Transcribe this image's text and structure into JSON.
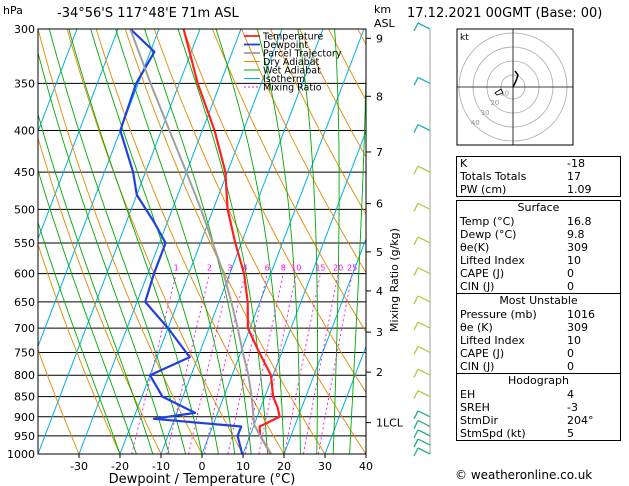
{
  "header": {
    "location": "-34°56'S  117°48'E  71m  ASL",
    "datetime": "17.12.2021  00GMT  (Base: 00)"
  },
  "copyright": "© weatheronline.co.uk",
  "colors": {
    "temperature": "#ff2020",
    "dewpoint": "#2040e0",
    "parcel": "#a0a0a0",
    "dry_adiabat": "#e08a00",
    "wet_adiabat": "#00aa00",
    "isotherm": "#00b0e0",
    "mixing_ratio": "#ff00ff",
    "wind": "#33cc33"
  },
  "chart_data": {
    "type": "line",
    "title": "",
    "xlabel": "Dewpoint / Temperature (°C)",
    "ylabel": "hPa",
    "y2label_km": "km\nASL",
    "mixing_ratio_label": "Mixing Ratio (g/kg)",
    "xlim": [
      -35,
      40
    ],
    "ylim": [
      1000,
      300
    ],
    "x_ticks": [
      -30,
      -20,
      -10,
      0,
      10,
      20,
      30,
      40
    ],
    "pressure_ticks": [
      300,
      350,
      400,
      450,
      500,
      550,
      600,
      650,
      700,
      750,
      800,
      850,
      900,
      950,
      1000
    ],
    "km_ticks": [
      {
        "p": 308,
        "label": "9"
      },
      {
        "p": 363,
        "label": "8"
      },
      {
        "p": 425,
        "label": "7"
      },
      {
        "p": 492,
        "label": "6"
      },
      {
        "p": 564,
        "label": "5"
      },
      {
        "p": 630,
        "label": "4"
      },
      {
        "p": 708,
        "label": "3"
      },
      {
        "p": 793,
        "label": "2"
      },
      {
        "p": 915,
        "label": "1LCL"
      }
    ],
    "mixing_ratio_values": [
      "1",
      "2",
      "3",
      "4",
      "6",
      "8",
      "10",
      "15",
      "20",
      "25"
    ],
    "legend": {
      "position": "top-left",
      "entries": [
        "Temperature",
        "Dewpoint",
        "Parcel Trajectory",
        "Dry Adiabat",
        "Wet Adiabat",
        "Isotherm",
        "Mixing Ratio"
      ]
    },
    "series": [
      {
        "name": "Temperature",
        "points": [
          [
            1000,
            16.8
          ],
          [
            950,
            12.5
          ],
          [
            925,
            11.5
          ],
          [
            900,
            15.5
          ],
          [
            875,
            14.0
          ],
          [
            850,
            12.0
          ],
          [
            800,
            9.5
          ],
          [
            750,
            4.5
          ],
          [
            700,
            -0.5
          ],
          [
            650,
            -3.0
          ],
          [
            600,
            -6.5
          ],
          [
            550,
            -11.5
          ],
          [
            500,
            -16.5
          ],
          [
            450,
            -20.5
          ],
          [
            400,
            -27.0
          ],
          [
            350,
            -35.5
          ],
          [
            300,
            -44.0
          ]
        ]
      },
      {
        "name": "Dewpoint",
        "points": [
          [
            1000,
            9.8
          ],
          [
            950,
            7.0
          ],
          [
            925,
            7.0
          ],
          [
            905,
            -15.0
          ],
          [
            890,
            -5.5
          ],
          [
            850,
            -15.0
          ],
          [
            800,
            -20.0
          ],
          [
            760,
            -12.0
          ],
          [
            700,
            -20.0
          ],
          [
            650,
            -28.0
          ],
          [
            600,
            -28.5
          ],
          [
            550,
            -28.5
          ],
          [
            520,
            -33.0
          ],
          [
            480,
            -40.0
          ],
          [
            450,
            -43.0
          ],
          [
            400,
            -50.0
          ],
          [
            350,
            -50.5
          ],
          [
            320,
            -49.0
          ],
          [
            300,
            -57.0
          ]
        ]
      },
      {
        "name": "Parcel Trajectory",
        "points": [
          [
            1000,
            16.8
          ],
          [
            950,
            12.5
          ],
          [
            920,
            10.0
          ],
          [
            850,
            6.8
          ],
          [
            800,
            4.0
          ],
          [
            750,
            0.5
          ],
          [
            700,
            -3.0
          ],
          [
            650,
            -7.0
          ],
          [
            600,
            -11.5
          ],
          [
            550,
            -17.0
          ],
          [
            500,
            -23.0
          ],
          [
            450,
            -30.0
          ],
          [
            400,
            -38.0
          ],
          [
            350,
            -47.0
          ],
          [
            300,
            -57.0
          ]
        ]
      }
    ],
    "wind_barbs_pressure": [
      1000,
      975,
      950,
      925,
      900,
      850,
      800,
      750,
      700,
      650,
      600,
      550,
      500,
      450,
      400,
      350,
      300
    ],
    "hodograph": {
      "label": "kt",
      "ring_labels": [
        "10",
        "20",
        "30",
        "40"
      ]
    }
  },
  "indices": {
    "top": [
      {
        "label": "K",
        "value": "-18"
      },
      {
        "label": "Totals Totals",
        "value": "17"
      },
      {
        "label": "PW (cm)",
        "value": "1.09"
      }
    ],
    "surface": {
      "title": "Surface",
      "rows": [
        {
          "label": "Temp (°C)",
          "value": "16.8"
        },
        {
          "label": "Dewp (°C)",
          "value": "9.8"
        },
        {
          "label": "θe(K)",
          "value": "309"
        },
        {
          "label": "Lifted Index",
          "value": "10"
        },
        {
          "label": "CAPE (J)",
          "value": "0"
        },
        {
          "label": "CIN (J)",
          "value": "0"
        }
      ]
    },
    "unstable": {
      "title": "Most Unstable",
      "rows": [
        {
          "label": "Pressure (mb)",
          "value": "1016"
        },
        {
          "label": "θe (K)",
          "value": "309"
        },
        {
          "label": "Lifted Index",
          "value": "10"
        },
        {
          "label": "CAPE (J)",
          "value": "0"
        },
        {
          "label": "CIN (J)",
          "value": "0"
        }
      ]
    },
    "hodograph": {
      "title": "Hodograph",
      "rows": [
        {
          "label": "EH",
          "value": "4"
        },
        {
          "label": "SREH",
          "value": "-3"
        },
        {
          "label": "StmDir",
          "value": "204°"
        },
        {
          "label": "StmSpd (kt)",
          "value": "5"
        }
      ]
    }
  }
}
